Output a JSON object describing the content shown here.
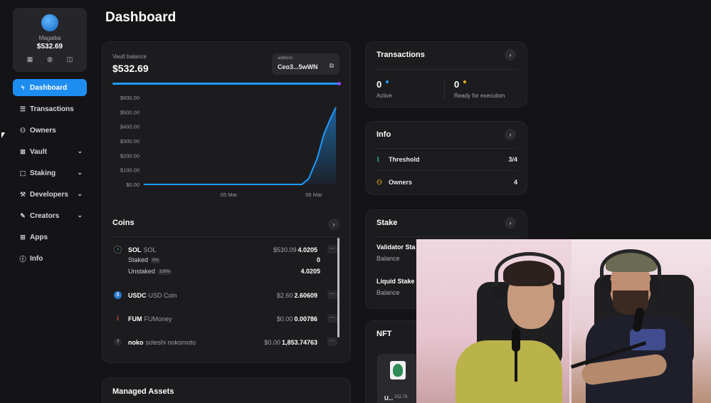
{
  "wallet": {
    "name": "Magaiba",
    "balance": "$532.69",
    "action_icons": [
      "qr-icon",
      "coins-icon",
      "copy-icon"
    ]
  },
  "nav": [
    {
      "label": "Dashboard",
      "icon": "bolt-icon",
      "active": true
    },
    {
      "label": "Transactions",
      "icon": "list-icon"
    },
    {
      "label": "Owners",
      "icon": "users-icon"
    },
    {
      "label": "Vault",
      "icon": "vault-icon",
      "expandable": true
    },
    {
      "label": "Staking",
      "icon": "stake-icon",
      "expandable": true
    },
    {
      "label": "Developers",
      "icon": "wrench-icon",
      "expandable": true
    },
    {
      "label": "Creators",
      "icon": "brush-icon",
      "expandable": true
    },
    {
      "label": "Apps",
      "icon": "grid-icon"
    },
    {
      "label": "Info",
      "icon": "info-icon"
    }
  ],
  "page_title": "Dashboard",
  "vault": {
    "label": "Vault balance",
    "value": "$532.69",
    "address_label": "address",
    "address": "Ceo3...5wWN",
    "progress": 1.0
  },
  "chart_data": {
    "type": "area",
    "x": [
      "05 Mar",
      "06 Mar"
    ],
    "ylabels": [
      "$600.00",
      "$500.00",
      "$400.00",
      "$300.00",
      "$200.00",
      "$100.00",
      "$0.00"
    ],
    "ylim": [
      0,
      600
    ],
    "series": [
      {
        "values": [
          [
            0,
            0
          ],
          [
            0.45,
            0
          ],
          [
            0.93,
            0
          ],
          [
            0.97,
            40
          ],
          [
            1.02,
            180
          ],
          [
            1.06,
            350
          ],
          [
            1.1,
            460
          ],
          [
            1.13,
            532
          ]
        ]
      }
    ],
    "color": "#1e9bff"
  },
  "coins": {
    "title": "Coins",
    "rows": [
      {
        "symbol": "SOL",
        "name": "SOL",
        "usd": "$530.09",
        "amount": "4.0205",
        "sub": [
          {
            "label": "Staked",
            "pct": "0%",
            "value": "0"
          },
          {
            "label": "Unstaked",
            "pct": "100%",
            "value": "4.0205"
          }
        ]
      },
      {
        "symbol": "USDC",
        "name": "USD Coin",
        "usd": "$2.60",
        "amount": "2.60609"
      },
      {
        "symbol": "FUM",
        "name": "FUMoney",
        "usd": "$0.00",
        "amount": "0.00786"
      },
      {
        "symbol": "noko",
        "name": "soteshi nokomoto",
        "usd": "$0.00",
        "amount": "1,853.74763"
      }
    ],
    "more": "···"
  },
  "managed_assets": {
    "title": "Managed Assets"
  },
  "transactions": {
    "title": "Transactions",
    "active_count": "0",
    "active_label": "Active",
    "ready_count": "0",
    "ready_label": "Ready for execution",
    "active_color": "#1e9bff",
    "ready_color": "#f2b01e"
  },
  "info": {
    "title": "Info",
    "rows": [
      {
        "label": "Threshold",
        "value": "3/4",
        "icon": "pulse-icon"
      },
      {
        "label": "Owners",
        "value": "4",
        "icon": "users-icon"
      }
    ]
  },
  "stake": {
    "title": "Stake",
    "rows": [
      {
        "title": "Validator Sta",
        "sub": "Balance"
      },
      {
        "title": "Liquid Stake",
        "sub": "Balance"
      }
    ]
  },
  "nft": {
    "title": "NFT",
    "item_label": "U...",
    "item_sub": "252.78"
  }
}
